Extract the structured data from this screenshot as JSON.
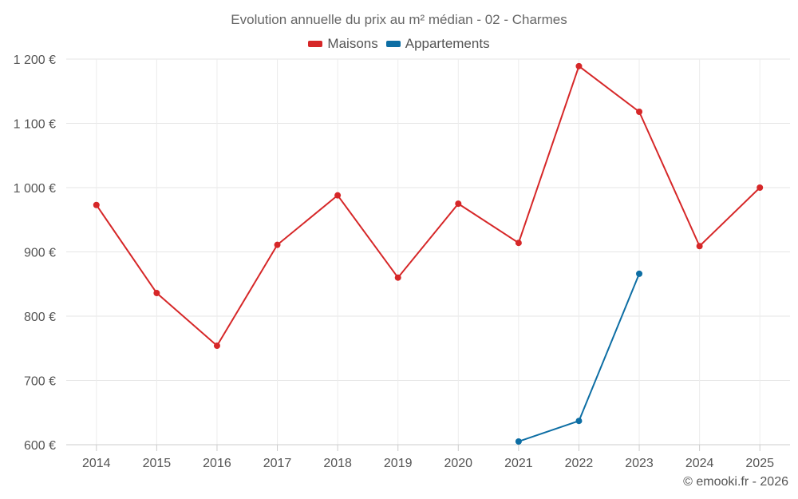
{
  "chart_data": {
    "type": "line",
    "title": "Evolution annuelle du prix au m² médian - 02 - Charmes",
    "categories": [
      "2014",
      "2015",
      "2016",
      "2017",
      "2018",
      "2019",
      "2020",
      "2021",
      "2022",
      "2023",
      "2024",
      "2025"
    ],
    "series": [
      {
        "name": "Maisons",
        "color": "#d62728",
        "values": [
          973,
          836,
          754,
          911,
          988,
          860,
          975,
          914,
          1189,
          1118,
          909,
          1000
        ]
      },
      {
        "name": "Appartements",
        "color": "#0d6ea4",
        "values": [
          null,
          null,
          null,
          null,
          null,
          null,
          null,
          605,
          637,
          866,
          null,
          null
        ]
      }
    ],
    "ylim": [
      600,
      1200
    ],
    "yticks": [
      600,
      700,
      800,
      900,
      1000,
      1100,
      1200
    ],
    "ytick_labels": [
      "600 €",
      "700 €",
      "800 €",
      "900 €",
      "1 000 €",
      "1 100 €",
      "1 200 €"
    ],
    "xlabel": "",
    "ylabel": "",
    "grid": true,
    "legend": "top-center"
  },
  "credit": "© emooki.fr - 2026"
}
